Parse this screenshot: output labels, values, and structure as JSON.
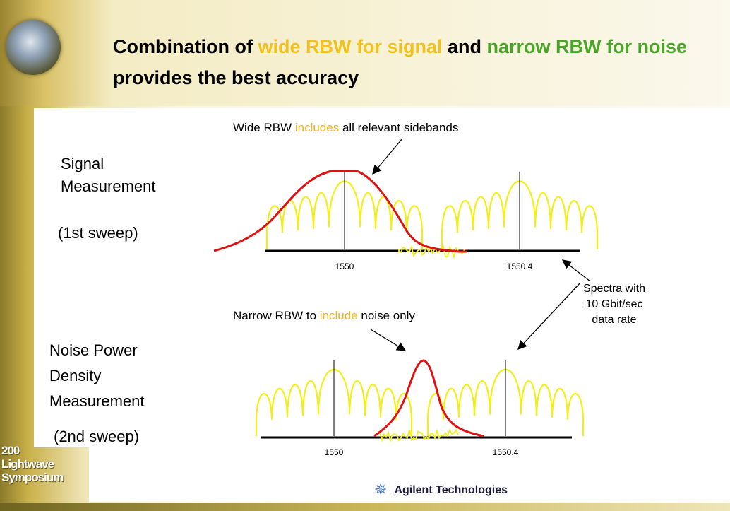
{
  "title": [
    "Combination of ",
    "wide RBW for signal",
    " and ",
    "narrow RBW for noise",
    " provides the best accuracy"
  ],
  "symposium": [
    "200",
    "Lightwave",
    "Symposium"
  ],
  "signal": {
    "label": [
      "Signal",
      "Measurement"
    ],
    "sweep": "(1st sweep)",
    "annotation": [
      "Wide RBW ",
      "includes",
      " all relevant sidebands"
    ],
    "ticks": [
      "1550",
      "1550.4"
    ]
  },
  "noise": {
    "label": [
      "Noise Power",
      "Density",
      "Measurement"
    ],
    "sweep": "(2nd sweep)",
    "annotation": [
      "Narrow RBW to ",
      "include",
      " noise only"
    ],
    "ticks": [
      "1550",
      "1550.4"
    ]
  },
  "spectra_note": [
    "Spectra with",
    "10 Gbit/sec",
    "data rate"
  ],
  "footer": "Agilent Technologies"
}
